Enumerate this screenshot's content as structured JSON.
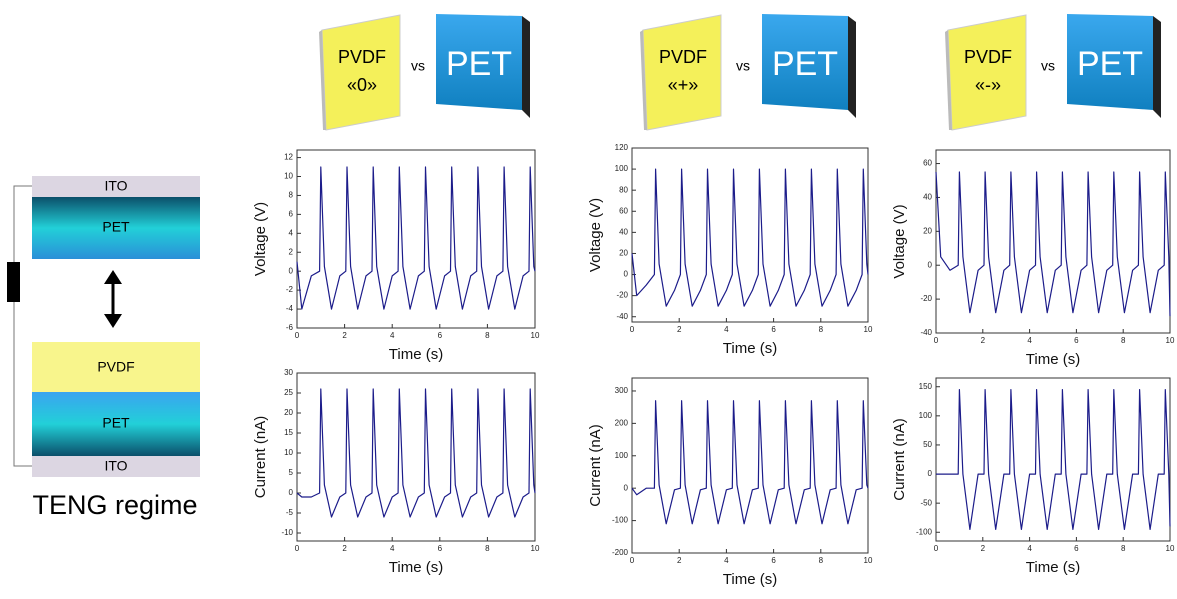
{
  "diagram": {
    "top_electrode": "ITO",
    "top_layer": "PET",
    "bottom_upper_layer": "PVDF",
    "bottom_layer": "PET",
    "bottom_electrode": "ITO",
    "caption": "TENG regime"
  },
  "pairs": [
    {
      "left_line1": "PVDF",
      "left_line2": "«0»",
      "vs": "vs",
      "right": "PET"
    },
    {
      "left_line1": "PVDF",
      "left_line2": "«+»",
      "vs": "vs",
      "right": "PET"
    },
    {
      "left_line1": "PVDF",
      "left_line2": "«-»",
      "vs": "vs",
      "right": "PET"
    }
  ],
  "chart_data": [
    {
      "type": "line",
      "xlabel": "Time (s)",
      "ylabel": "Voltage (V)",
      "color": "#1c1c8a",
      "xlim": [
        0,
        10
      ],
      "xticks": [
        0,
        2,
        4,
        6,
        8,
        10
      ],
      "ylim": [
        -6,
        12.8
      ],
      "yticks": [
        -6,
        -4,
        -2,
        0,
        2,
        4,
        6,
        8,
        10,
        12
      ],
      "x": [
        0,
        0.2,
        0.6,
        0.95,
        1,
        1.15,
        1.45,
        1.8,
        2.05,
        2.1,
        2.25,
        2.55,
        2.9,
        3.15,
        3.2,
        3.35,
        3.65,
        4,
        4.25,
        4.3,
        4.45,
        4.75,
        5.1,
        5.35,
        5.4,
        5.55,
        5.85,
        6.2,
        6.45,
        6.5,
        6.65,
        6.95,
        7.3,
        7.55,
        7.6,
        7.75,
        8.05,
        8.4,
        8.65,
        8.7,
        8.85,
        9.15,
        9.5,
        9.75,
        9.8,
        9.95,
        10
      ],
      "values": [
        1,
        -4,
        -0.5,
        0,
        11,
        0.5,
        -4,
        -0.5,
        0,
        11,
        0.5,
        -4,
        -0.5,
        0,
        11,
        0.5,
        -4,
        -0.5,
        0,
        11,
        0.5,
        -4,
        -0.5,
        0,
        11,
        0.5,
        -4,
        -0.5,
        0,
        11,
        0.5,
        -4,
        -0.5,
        0,
        11,
        0.5,
        -4,
        -0.5,
        0,
        11,
        0.5,
        -4,
        -0.5,
        0,
        11,
        0.5,
        0
      ]
    },
    {
      "type": "line",
      "xlabel": "Time (s)",
      "ylabel": "Current (nA)",
      "color": "#1c1c8a",
      "xlim": [
        0,
        10
      ],
      "xticks": [
        0,
        2,
        4,
        6,
        8,
        10
      ],
      "ylim": [
        -12,
        30
      ],
      "yticks": [
        -10,
        -5,
        0,
        5,
        10,
        15,
        20,
        25,
        30
      ],
      "x": [
        0,
        0.2,
        0.6,
        0.95,
        1,
        1.15,
        1.45,
        1.8,
        2.05,
        2.1,
        2.25,
        2.55,
        2.9,
        3.15,
        3.2,
        3.35,
        3.65,
        4,
        4.25,
        4.3,
        4.45,
        4.75,
        5.1,
        5.35,
        5.4,
        5.55,
        5.85,
        6.2,
        6.45,
        6.5,
        6.65,
        6.95,
        7.3,
        7.55,
        7.6,
        7.75,
        8.05,
        8.4,
        8.65,
        8.7,
        8.85,
        9.15,
        9.5,
        9.75,
        9.8,
        9.95,
        10
      ],
      "values": [
        0,
        -1,
        -1,
        0,
        26,
        2,
        -6,
        -1,
        0,
        26,
        2,
        -6,
        -1,
        0,
        26,
        2,
        -6,
        -1,
        0,
        26,
        2,
        -6,
        -1,
        0,
        26,
        2,
        -6,
        -1,
        0,
        26,
        2,
        -6,
        -1,
        0,
        26,
        2,
        -6,
        -1,
        0,
        26,
        2,
        -6,
        -1,
        0,
        26,
        2,
        0
      ]
    },
    {
      "type": "line",
      "xlabel": "Time (s)",
      "ylabel": "Voltage (V)",
      "color": "#1c1c8a",
      "xlim": [
        0,
        10
      ],
      "xticks": [
        0,
        2,
        4,
        6,
        8,
        10
      ],
      "ylim": [
        -45,
        120
      ],
      "yticks": [
        -40,
        -20,
        0,
        20,
        40,
        60,
        80,
        100,
        120
      ],
      "x": [
        0,
        0.2,
        0.6,
        0.95,
        1,
        1.15,
        1.45,
        1.8,
        2.05,
        2.1,
        2.25,
        2.55,
        2.9,
        3.15,
        3.2,
        3.35,
        3.65,
        4,
        4.25,
        4.3,
        4.45,
        4.75,
        5.1,
        5.35,
        5.4,
        5.55,
        5.85,
        6.2,
        6.45,
        6.5,
        6.65,
        6.95,
        7.3,
        7.55,
        7.6,
        7.75,
        8.05,
        8.4,
        8.65,
        8.7,
        8.85,
        9.15,
        9.5,
        9.75,
        9.8,
        9.95,
        10
      ],
      "values": [
        20,
        -20,
        -10,
        0,
        100,
        10,
        -30,
        -15,
        0,
        100,
        10,
        -30,
        -15,
        0,
        100,
        10,
        -30,
        -15,
        0,
        100,
        10,
        -30,
        -15,
        0,
        100,
        10,
        -30,
        -15,
        0,
        100,
        10,
        -30,
        -15,
        0,
        100,
        10,
        -30,
        -15,
        0,
        100,
        10,
        -30,
        -15,
        0,
        100,
        10,
        0
      ]
    },
    {
      "type": "line",
      "xlabel": "Time (s)",
      "ylabel": "Current (nA)",
      "color": "#1c1c8a",
      "xlim": [
        0,
        10
      ],
      "xticks": [
        0,
        2,
        4,
        6,
        8,
        10
      ],
      "ylim": [
        -200,
        340
      ],
      "yticks": [
        -200,
        -100,
        0,
        100,
        200,
        300
      ],
      "x": [
        0,
        0.2,
        0.6,
        0.95,
        1,
        1.15,
        1.45,
        1.8,
        2.05,
        2.1,
        2.25,
        2.55,
        2.9,
        3.15,
        3.2,
        3.35,
        3.65,
        4,
        4.25,
        4.3,
        4.45,
        4.75,
        5.1,
        5.35,
        5.4,
        5.55,
        5.85,
        6.2,
        6.45,
        6.5,
        6.65,
        6.95,
        7.3,
        7.55,
        7.6,
        7.75,
        8.05,
        8.4,
        8.65,
        8.7,
        8.85,
        9.15,
        9.5,
        9.75,
        9.8,
        9.95,
        10
      ],
      "values": [
        0,
        -20,
        0,
        0,
        270,
        10,
        -110,
        -5,
        0,
        270,
        10,
        -110,
        -5,
        0,
        270,
        10,
        -110,
        -5,
        0,
        270,
        10,
        -110,
        -5,
        0,
        270,
        10,
        -110,
        -5,
        0,
        270,
        10,
        -110,
        -5,
        0,
        270,
        10,
        -110,
        -5,
        0,
        270,
        10,
        -110,
        -5,
        0,
        270,
        10,
        0
      ]
    },
    {
      "type": "line",
      "xlabel": "Time (s)",
      "ylabel": "Voltage (V)",
      "color": "#1c1c8a",
      "xlim": [
        0,
        10
      ],
      "xticks": [
        0,
        2,
        4,
        6,
        8,
        10
      ],
      "ylim": [
        -40,
        68
      ],
      "yticks": [
        -40,
        -20,
        0,
        20,
        40,
        60
      ],
      "x": [
        0,
        0.2,
        0.6,
        0.95,
        1,
        1.15,
        1.45,
        1.8,
        2.05,
        2.1,
        2.25,
        2.55,
        2.9,
        3.15,
        3.2,
        3.35,
        3.65,
        4,
        4.25,
        4.3,
        4.45,
        4.75,
        5.1,
        5.35,
        5.4,
        5.55,
        5.85,
        6.2,
        6.45,
        6.5,
        6.65,
        6.95,
        7.3,
        7.55,
        7.6,
        7.75,
        8.05,
        8.4,
        8.65,
        8.7,
        8.85,
        9.15,
        9.5,
        9.75,
        9.8,
        9.95,
        10
      ],
      "values": [
        55,
        5,
        -3,
        0,
        55,
        5,
        -28,
        -3,
        0,
        55,
        5,
        -28,
        -3,
        0,
        55,
        5,
        -28,
        -3,
        0,
        55,
        5,
        -28,
        -3,
        0,
        55,
        5,
        -28,
        -3,
        0,
        55,
        5,
        -28,
        -3,
        0,
        55,
        5,
        -28,
        -3,
        0,
        55,
        5,
        -28,
        -3,
        0,
        55,
        5,
        -30
      ]
    },
    {
      "type": "line",
      "xlabel": "Time (s)",
      "ylabel": "Current (nA)",
      "color": "#1c1c8a",
      "xlim": [
        0,
        10
      ],
      "xticks": [
        0,
        2,
        4,
        6,
        8,
        10
      ],
      "ylim": [
        -115,
        165
      ],
      "yticks": [
        -100,
        -50,
        0,
        50,
        100,
        150
      ],
      "x": [
        0,
        0.2,
        0.6,
        0.95,
        1,
        1.15,
        1.45,
        1.8,
        2.05,
        2.1,
        2.25,
        2.55,
        2.9,
        3.15,
        3.2,
        3.35,
        3.65,
        4,
        4.25,
        4.3,
        4.45,
        4.75,
        5.1,
        5.35,
        5.4,
        5.55,
        5.85,
        6.2,
        6.45,
        6.5,
        6.65,
        6.95,
        7.3,
        7.55,
        7.6,
        7.75,
        8.05,
        8.4,
        8.65,
        8.7,
        8.85,
        9.15,
        9.5,
        9.75,
        9.8,
        9.95,
        10
      ],
      "values": [
        0,
        0,
        0,
        0,
        145,
        0,
        -95,
        0,
        0,
        145,
        0,
        -95,
        0,
        0,
        145,
        0,
        -95,
        0,
        0,
        145,
        0,
        -95,
        0,
        0,
        145,
        0,
        -95,
        0,
        0,
        145,
        0,
        -95,
        0,
        0,
        145,
        0,
        -95,
        0,
        0,
        145,
        0,
        -95,
        0,
        0,
        145,
        0,
        -90
      ]
    }
  ]
}
